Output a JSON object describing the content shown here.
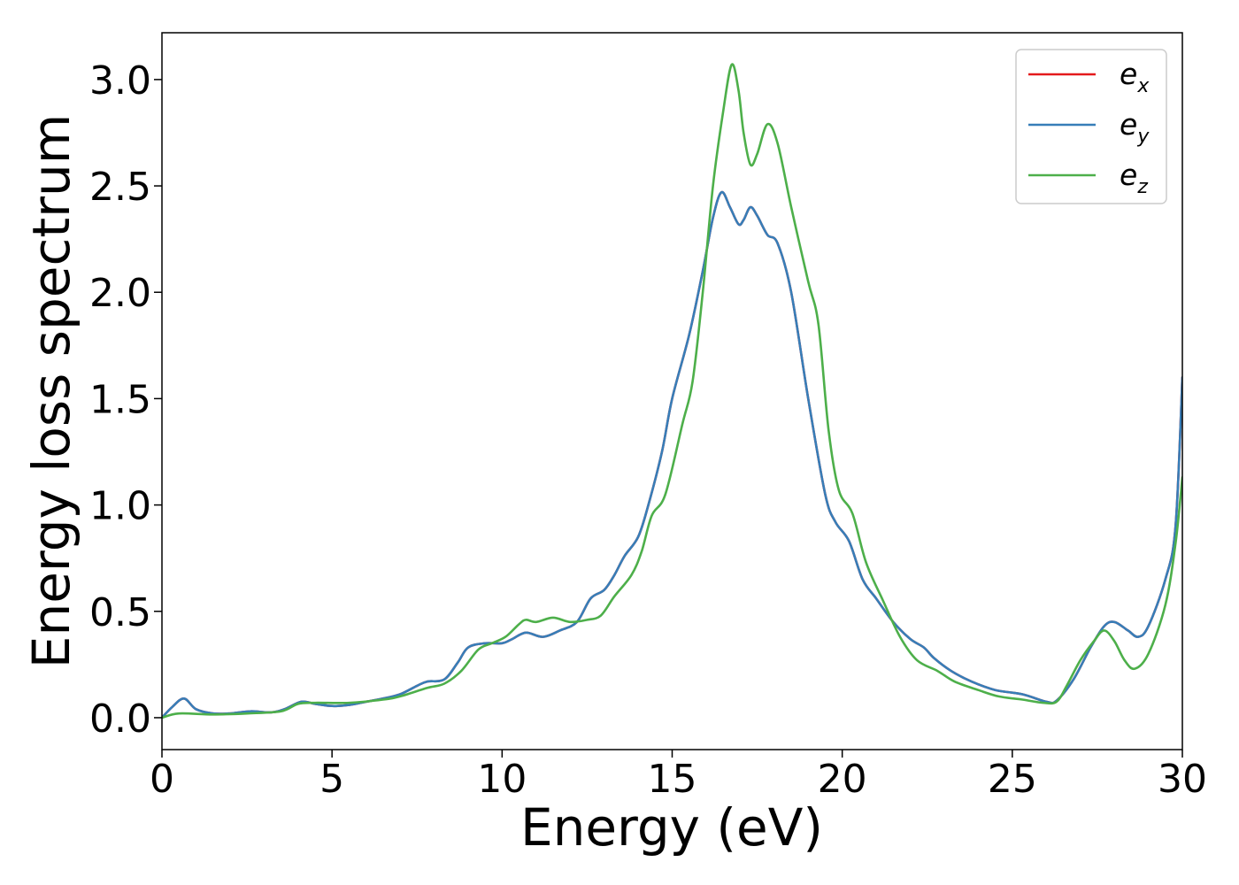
{
  "chart_data": {
    "type": "line",
    "title": "",
    "xlabel": "Energy (eV)",
    "ylabel": "Energy loss spectrum",
    "xlim": [
      0,
      30
    ],
    "ylim": [
      -0.15,
      3.22
    ],
    "xticks": [
      0,
      5,
      10,
      15,
      20,
      25,
      30
    ],
    "xtick_labels": [
      "0",
      "5",
      "10",
      "15",
      "20",
      "25",
      "30"
    ],
    "yticks": [
      0.0,
      0.5,
      1.0,
      1.5,
      2.0,
      2.5,
      3.0
    ],
    "ytick_labels": [
      "0.0",
      "0.5",
      "1.0",
      "1.5",
      "2.0",
      "2.5",
      "3.0"
    ],
    "grid": false,
    "legend_position": "top-right",
    "series": [
      {
        "name": "e_x",
        "legend_base": "e",
        "legend_sub": "x",
        "color": "#e41a1c",
        "points": [
          [
            0,
            0
          ],
          [
            0.3,
            0.05
          ],
          [
            0.65,
            0.09
          ],
          [
            1.0,
            0.04
          ],
          [
            1.5,
            0.02
          ],
          [
            2.0,
            0.02
          ],
          [
            2.6,
            0.03
          ],
          [
            3.2,
            0.025
          ],
          [
            3.6,
            0.04
          ],
          [
            4.1,
            0.075
          ],
          [
            4.5,
            0.065
          ],
          [
            5.0,
            0.055
          ],
          [
            5.5,
            0.06
          ],
          [
            6.0,
            0.075
          ],
          [
            6.5,
            0.09
          ],
          [
            7.0,
            0.11
          ],
          [
            7.5,
            0.15
          ],
          [
            7.8,
            0.17
          ],
          [
            8.3,
            0.18
          ],
          [
            8.7,
            0.26
          ],
          [
            9.0,
            0.33
          ],
          [
            9.5,
            0.35
          ],
          [
            10.0,
            0.35
          ],
          [
            10.3,
            0.37
          ],
          [
            10.7,
            0.4
          ],
          [
            11.2,
            0.38
          ],
          [
            11.7,
            0.41
          ],
          [
            12.2,
            0.45
          ],
          [
            12.6,
            0.56
          ],
          [
            13.0,
            0.6
          ],
          [
            13.3,
            0.67
          ],
          [
            13.6,
            0.76
          ],
          [
            14.0,
            0.85
          ],
          [
            14.3,
            1.0
          ],
          [
            14.7,
            1.25
          ],
          [
            15.0,
            1.5
          ],
          [
            15.5,
            1.8
          ],
          [
            15.9,
            2.1
          ],
          [
            16.2,
            2.35
          ],
          [
            16.45,
            2.47
          ],
          [
            16.7,
            2.4
          ],
          [
            16.95,
            2.32
          ],
          [
            17.1,
            2.34
          ],
          [
            17.3,
            2.4
          ],
          [
            17.5,
            2.36
          ],
          [
            17.8,
            2.27
          ],
          [
            18.1,
            2.23
          ],
          [
            18.5,
            2.0
          ],
          [
            19.0,
            1.5
          ],
          [
            19.5,
            1.05
          ],
          [
            19.8,
            0.92
          ],
          [
            20.2,
            0.83
          ],
          [
            20.6,
            0.65
          ],
          [
            21.0,
            0.56
          ],
          [
            21.5,
            0.45
          ],
          [
            22.0,
            0.37
          ],
          [
            22.4,
            0.33
          ],
          [
            22.7,
            0.28
          ],
          [
            23.2,
            0.22
          ],
          [
            23.8,
            0.17
          ],
          [
            24.5,
            0.13
          ],
          [
            25.3,
            0.11
          ],
          [
            26.0,
            0.075
          ],
          [
            26.3,
            0.08
          ],
          [
            26.8,
            0.18
          ],
          [
            27.3,
            0.33
          ],
          [
            27.7,
            0.43
          ],
          [
            28.0,
            0.45
          ],
          [
            28.4,
            0.41
          ],
          [
            28.7,
            0.38
          ],
          [
            29.0,
            0.43
          ],
          [
            29.5,
            0.65
          ],
          [
            29.8,
            0.9
          ],
          [
            30.0,
            1.6
          ]
        ]
      },
      {
        "name": "e_y",
        "legend_base": "e",
        "legend_sub": "y",
        "color": "#377eb8",
        "points": [
          [
            0,
            0
          ],
          [
            0.3,
            0.05
          ],
          [
            0.65,
            0.09
          ],
          [
            1.0,
            0.04
          ],
          [
            1.5,
            0.02
          ],
          [
            2.0,
            0.02
          ],
          [
            2.6,
            0.03
          ],
          [
            3.2,
            0.025
          ],
          [
            3.6,
            0.04
          ],
          [
            4.1,
            0.075
          ],
          [
            4.5,
            0.065
          ],
          [
            5.0,
            0.055
          ],
          [
            5.5,
            0.06
          ],
          [
            6.0,
            0.075
          ],
          [
            6.5,
            0.09
          ],
          [
            7.0,
            0.11
          ],
          [
            7.5,
            0.15
          ],
          [
            7.8,
            0.17
          ],
          [
            8.3,
            0.18
          ],
          [
            8.7,
            0.26
          ],
          [
            9.0,
            0.33
          ],
          [
            9.5,
            0.35
          ],
          [
            10.0,
            0.35
          ],
          [
            10.3,
            0.37
          ],
          [
            10.7,
            0.4
          ],
          [
            11.2,
            0.38
          ],
          [
            11.7,
            0.41
          ],
          [
            12.2,
            0.45
          ],
          [
            12.6,
            0.56
          ],
          [
            13.0,
            0.6
          ],
          [
            13.3,
            0.67
          ],
          [
            13.6,
            0.76
          ],
          [
            14.0,
            0.85
          ],
          [
            14.3,
            1.0
          ],
          [
            14.7,
            1.25
          ],
          [
            15.0,
            1.5
          ],
          [
            15.5,
            1.8
          ],
          [
            15.9,
            2.1
          ],
          [
            16.2,
            2.35
          ],
          [
            16.45,
            2.47
          ],
          [
            16.7,
            2.4
          ],
          [
            16.95,
            2.32
          ],
          [
            17.1,
            2.34
          ],
          [
            17.3,
            2.4
          ],
          [
            17.5,
            2.36
          ],
          [
            17.8,
            2.27
          ],
          [
            18.1,
            2.23
          ],
          [
            18.5,
            2.0
          ],
          [
            19.0,
            1.5
          ],
          [
            19.5,
            1.05
          ],
          [
            19.8,
            0.92
          ],
          [
            20.2,
            0.83
          ],
          [
            20.6,
            0.65
          ],
          [
            21.0,
            0.56
          ],
          [
            21.5,
            0.45
          ],
          [
            22.0,
            0.37
          ],
          [
            22.4,
            0.33
          ],
          [
            22.7,
            0.28
          ],
          [
            23.2,
            0.22
          ],
          [
            23.8,
            0.17
          ],
          [
            24.5,
            0.13
          ],
          [
            25.3,
            0.11
          ],
          [
            26.0,
            0.075
          ],
          [
            26.3,
            0.08
          ],
          [
            26.8,
            0.18
          ],
          [
            27.3,
            0.33
          ],
          [
            27.7,
            0.43
          ],
          [
            28.0,
            0.45
          ],
          [
            28.4,
            0.41
          ],
          [
            28.7,
            0.38
          ],
          [
            29.0,
            0.43
          ],
          [
            29.5,
            0.65
          ],
          [
            29.8,
            0.9
          ],
          [
            30.0,
            1.6
          ]
        ]
      },
      {
        "name": "e_z",
        "legend_base": "e",
        "legend_sub": "z",
        "color": "#4daf4a",
        "points": [
          [
            0,
            0
          ],
          [
            0.5,
            0.02
          ],
          [
            1.5,
            0.015
          ],
          [
            2.5,
            0.02
          ],
          [
            3.5,
            0.03
          ],
          [
            4.0,
            0.065
          ],
          [
            4.5,
            0.07
          ],
          [
            5.5,
            0.07
          ],
          [
            6.5,
            0.085
          ],
          [
            7.0,
            0.1
          ],
          [
            7.8,
            0.14
          ],
          [
            8.3,
            0.16
          ],
          [
            8.8,
            0.22
          ],
          [
            9.3,
            0.32
          ],
          [
            9.7,
            0.35
          ],
          [
            10.1,
            0.38
          ],
          [
            10.5,
            0.44
          ],
          [
            10.7,
            0.46
          ],
          [
            11.0,
            0.45
          ],
          [
            11.5,
            0.47
          ],
          [
            12.0,
            0.45
          ],
          [
            12.5,
            0.46
          ],
          [
            12.9,
            0.48
          ],
          [
            13.3,
            0.57
          ],
          [
            13.8,
            0.67
          ],
          [
            14.1,
            0.78
          ],
          [
            14.4,
            0.95
          ],
          [
            14.8,
            1.05
          ],
          [
            15.3,
            1.38
          ],
          [
            15.6,
            1.58
          ],
          [
            15.9,
            2.0
          ],
          [
            16.2,
            2.5
          ],
          [
            16.5,
            2.85
          ],
          [
            16.75,
            3.07
          ],
          [
            16.95,
            2.95
          ],
          [
            17.1,
            2.75
          ],
          [
            17.3,
            2.6
          ],
          [
            17.5,
            2.65
          ],
          [
            17.8,
            2.79
          ],
          [
            18.1,
            2.7
          ],
          [
            18.5,
            2.4
          ],
          [
            19.0,
            2.05
          ],
          [
            19.3,
            1.85
          ],
          [
            19.6,
            1.35
          ],
          [
            19.9,
            1.07
          ],
          [
            20.3,
            0.96
          ],
          [
            20.7,
            0.73
          ],
          [
            21.2,
            0.55
          ],
          [
            21.7,
            0.38
          ],
          [
            22.2,
            0.27
          ],
          [
            22.8,
            0.22
          ],
          [
            23.3,
            0.17
          ],
          [
            24.0,
            0.13
          ],
          [
            24.6,
            0.1
          ],
          [
            25.3,
            0.085
          ],
          [
            25.9,
            0.07
          ],
          [
            26.3,
            0.075
          ],
          [
            26.6,
            0.15
          ],
          [
            27.0,
            0.27
          ],
          [
            27.4,
            0.36
          ],
          [
            27.7,
            0.41
          ],
          [
            28.0,
            0.36
          ],
          [
            28.3,
            0.27
          ],
          [
            28.6,
            0.23
          ],
          [
            29.0,
            0.3
          ],
          [
            29.5,
            0.53
          ],
          [
            29.8,
            0.82
          ],
          [
            30.0,
            1.13
          ]
        ]
      }
    ]
  }
}
